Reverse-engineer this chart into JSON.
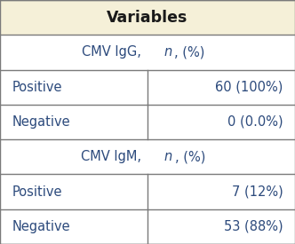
{
  "header": "Variables",
  "header_bg": "#f5f0d8",
  "subheader_bg": "#ffffff",
  "row_bg": "#ffffff",
  "border_color": "#7a7a7a",
  "text_color": "#2c4a7c",
  "header_text_color": "#1a1a1a",
  "rows": [
    {
      "type": "subheader",
      "parts": [
        {
          "text": "CMV IgG, ",
          "italic": false
        },
        {
          "text": "n",
          "italic": true
        },
        {
          "text": ", (%)",
          "italic": false
        }
      ]
    },
    {
      "type": "data",
      "col1": "Positive",
      "col2": "60 (100%)"
    },
    {
      "type": "data",
      "col1": "Negative",
      "col2": "0 (0.0%)"
    },
    {
      "type": "subheader",
      "parts": [
        {
          "text": "CMV IgM, ",
          "italic": false
        },
        {
          "text": "n",
          "italic": true
        },
        {
          "text": ", (%)",
          "italic": false
        }
      ]
    },
    {
      "type": "data",
      "col1": "Positive",
      "col2": "7 (12%)"
    },
    {
      "type": "data",
      "col1": "Negative",
      "col2": "53 (88%)"
    }
  ],
  "col_split": 0.5,
  "fontsize": 10.5,
  "header_fontsize": 12.5,
  "fig_width": 3.32,
  "fig_height": 2.75,
  "dpi": 100,
  "lw": 1.0
}
